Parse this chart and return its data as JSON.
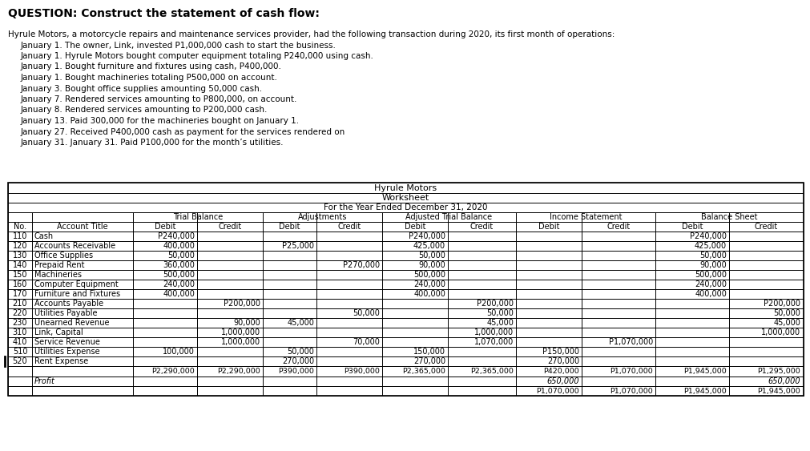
{
  "title": "QUESTION: Construct the statement of cash flow:",
  "question_text": [
    "Hyrule Motors, a motorcycle repairs and maintenance services provider, had the following transaction during 2020, its first month of operations:",
    "January 1. The owner, Link, invested P1,000,000 cash to start the business.",
    "January 1. Hyrule Motors bought computer equipment totaling P240,000 using cash.",
    "January 1. Bought furniture and fixtures using cash, P400,000.",
    "January 1. Bought machineries totaling P500,000 on account.",
    "January 3. Bought office supplies amounting 50,000 cash.",
    "January 7. Rendered services amounting to P800,000, on account.",
    "January 8. Rendered services amounting to P200,000 cash.",
    "January 13. Paid 300,000 for the machineries bought on January 1.",
    "January 27. Received P400,000 cash as payment for the services rendered on",
    "January 31. January 31. Paid P100,000 for the month’s utilities."
  ],
  "table_header1": "Hyrule Motors",
  "table_header2": "Worksheet",
  "table_header3": "For the Year Ended December 31, 2020",
  "rows": [
    {
      "no": "110",
      "title": "Cash",
      "tb_d": "P240,000",
      "tb_c": "",
      "adj_d": "",
      "adj_c": "",
      "atb_d": "P240,000",
      "atb_c": "",
      "is_d": "",
      "is_c": "",
      "bs_d": "P240,000",
      "bs_c": ""
    },
    {
      "no": "120",
      "title": "Accounts Receivable",
      "tb_d": "400,000",
      "tb_c": "",
      "adj_d": "P25,000",
      "adj_c": "",
      "atb_d": "425,000",
      "atb_c": "",
      "is_d": "",
      "is_c": "",
      "bs_d": "425,000",
      "bs_c": ""
    },
    {
      "no": "130",
      "title": "Office Supplies",
      "tb_d": "50,000",
      "tb_c": "",
      "adj_d": "",
      "adj_c": "",
      "atb_d": "50,000",
      "atb_c": "",
      "is_d": "",
      "is_c": "",
      "bs_d": "50,000",
      "bs_c": ""
    },
    {
      "no": "140",
      "title": "Prepaid Rent",
      "tb_d": "360,000",
      "tb_c": "",
      "adj_d": "",
      "adj_c": "P270,000",
      "atb_d": "90,000",
      "atb_c": "",
      "is_d": "",
      "is_c": "",
      "bs_d": "90,000",
      "bs_c": ""
    },
    {
      "no": "150",
      "title": "Machineries",
      "tb_d": "500,000",
      "tb_c": "",
      "adj_d": "",
      "adj_c": "",
      "atb_d": "500,000",
      "atb_c": "",
      "is_d": "",
      "is_c": "",
      "bs_d": "500,000",
      "bs_c": ""
    },
    {
      "no": "160",
      "title": "Computer Equipment",
      "tb_d": "240,000",
      "tb_c": "",
      "adj_d": "",
      "adj_c": "",
      "atb_d": "240,000",
      "atb_c": "",
      "is_d": "",
      "is_c": "",
      "bs_d": "240,000",
      "bs_c": ""
    },
    {
      "no": "170",
      "title": "Furniture and Fixtures",
      "tb_d": "400,000",
      "tb_c": "",
      "adj_d": "",
      "adj_c": "",
      "atb_d": "400,000",
      "atb_c": "",
      "is_d": "",
      "is_c": "",
      "bs_d": "400,000",
      "bs_c": ""
    },
    {
      "no": "210",
      "title": "Accounts Payable",
      "tb_d": "",
      "tb_c": "P200,000",
      "adj_d": "",
      "adj_c": "",
      "atb_d": "",
      "atb_c": "P200,000",
      "is_d": "",
      "is_c": "",
      "bs_d": "",
      "bs_c": "P200,000"
    },
    {
      "no": "220",
      "title": "Utilities Payable",
      "tb_d": "",
      "tb_c": "",
      "adj_d": "",
      "adj_c": "50,000",
      "atb_d": "",
      "atb_c": "50,000",
      "is_d": "",
      "is_c": "",
      "bs_d": "",
      "bs_c": "50,000"
    },
    {
      "no": "230",
      "title": "Unearned Revenue",
      "tb_d": "",
      "tb_c": "90,000",
      "adj_d": "45,000",
      "adj_c": "",
      "atb_d": "",
      "atb_c": "45,000",
      "is_d": "",
      "is_c": "",
      "bs_d": "",
      "bs_c": "45,000"
    },
    {
      "no": "310",
      "title": "Link, Capital",
      "tb_d": "",
      "tb_c": "1,000,000",
      "adj_d": "",
      "adj_c": "",
      "atb_d": "",
      "atb_c": "1,000,000",
      "is_d": "",
      "is_c": "",
      "bs_d": "",
      "bs_c": "1,000,000"
    },
    {
      "no": "410",
      "title": "Service Revenue",
      "tb_d": "",
      "tb_c": "1,000,000",
      "adj_d": "",
      "adj_c": "70,000",
      "atb_d": "",
      "atb_c": "1,070,000",
      "is_d": "",
      "is_c": "P1,070,000",
      "bs_d": "",
      "bs_c": ""
    },
    {
      "no": "510",
      "title": "Utilities Expense",
      "tb_d": "100,000",
      "tb_c": "",
      "adj_d": "50,000",
      "adj_c": "",
      "atb_d": "150,000",
      "atb_c": "",
      "is_d": "P150,000",
      "is_c": "",
      "bs_d": "",
      "bs_c": ""
    },
    {
      "no": "520",
      "title": "Rent Expense",
      "tb_d": "",
      "tb_c": "",
      "adj_d": "270,000",
      "adj_c": "",
      "atb_d": "270,000",
      "atb_c": "",
      "is_d": "270,000",
      "is_c": "",
      "bs_d": "",
      "bs_c": ""
    }
  ],
  "totals_row": {
    "tb_d": "P2,290,000",
    "tb_c": "P2,290,000",
    "adj_d": "P390,000",
    "adj_c": "P390,000",
    "atb_d": "P2,365,000",
    "atb_c": "P2,365,000",
    "is_d": "P420,000",
    "is_c": "P1,070,000",
    "bs_d": "P1,945,000",
    "bs_c": "P1,295,000"
  },
  "profit_row": {
    "is_d": "650,000",
    "is_c": "",
    "bs_d": "",
    "bs_c": "650,000"
  },
  "final_row": {
    "is_d": "P1,070,000",
    "is_c": "P1,070,000",
    "bs_d": "P1,945,000",
    "bs_c": "P1,945,000"
  }
}
